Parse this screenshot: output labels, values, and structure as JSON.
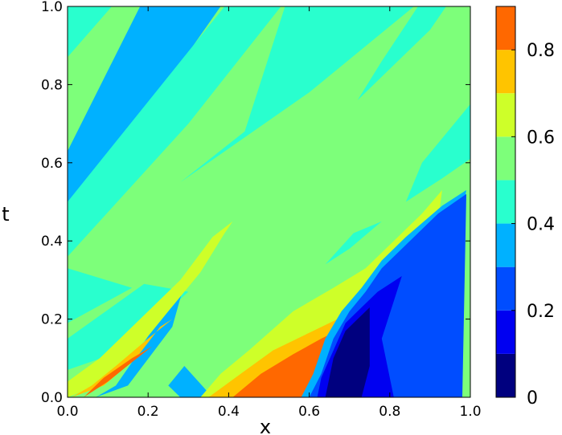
{
  "chart_data": {
    "type": "heatmap",
    "title": "",
    "xlabel": "x",
    "ylabel": "t",
    "xlim": [
      0.0,
      1.0
    ],
    "ylim": [
      0.0,
      1.0
    ],
    "x_ticks": [
      "0.0",
      "0.2",
      "0.4",
      "0.6",
      "0.8",
      "1.0"
    ],
    "y_ticks": [
      "0.0",
      "0.2",
      "0.4",
      "0.6",
      "0.8",
      "1.0"
    ],
    "x_tick_values": [
      0.0,
      0.2,
      0.4,
      0.6,
      0.8,
      1.0
    ],
    "y_tick_values": [
      0.0,
      0.2,
      0.4,
      0.6,
      0.8,
      1.0
    ],
    "colorbar": {
      "range": [
        0.0,
        0.9
      ],
      "levels": [
        0.0,
        0.1,
        0.2,
        0.3,
        0.4,
        0.5,
        0.6,
        0.7,
        0.8,
        0.9
      ],
      "colors": [
        "#00007f",
        "#0000f1",
        "#004dff",
        "#00b1ff",
        "#29ffce",
        "#7dff7a",
        "#ceff29",
        "#ffc400",
        "#ff6800",
        "#f10800"
      ],
      "tick_labels": [
        "0",
        "0.2",
        "0.4",
        "0.6",
        "0.8"
      ],
      "tick_values": [
        0.0,
        0.2,
        0.4,
        0.6,
        0.8
      ]
    },
    "field_background_level": 0.55,
    "regions": [
      {
        "level": 0.35,
        "points": [
          [
            0.18,
            1.0
          ],
          [
            0.38,
            1.0
          ],
          [
            0.19,
            0.72
          ],
          [
            0.0,
            0.46
          ],
          [
            0.0,
            0.63
          ]
        ]
      },
      {
        "level": 0.45,
        "points": [
          [
            0.0,
            1.0
          ],
          [
            0.11,
            1.0
          ],
          [
            0.0,
            0.87
          ]
        ]
      },
      {
        "level": 0.45,
        "points": [
          [
            0.39,
            1.0
          ],
          [
            0.53,
            1.0
          ],
          [
            0.3,
            0.7
          ],
          [
            0.0,
            0.36
          ],
          [
            0.0,
            0.5
          ]
        ]
      },
      {
        "level": 0.45,
        "points": [
          [
            0.54,
            1.0
          ],
          [
            0.86,
            1.0
          ],
          [
            0.6,
            0.78
          ],
          [
            0.28,
            0.55
          ],
          [
            0.44,
            0.68
          ]
        ]
      },
      {
        "level": 0.45,
        "points": [
          [
            0.87,
            1.0
          ],
          [
            0.94,
            1.0
          ],
          [
            0.9,
            0.94
          ],
          [
            0.72,
            0.76
          ],
          [
            0.78,
            0.86
          ]
        ]
      },
      {
        "level": 0.45,
        "points": [
          [
            0.0,
            0.33
          ],
          [
            0.16,
            0.28
          ],
          [
            0.0,
            0.19
          ]
        ]
      },
      {
        "level": 0.45,
        "points": [
          [
            1.0,
            0.75
          ],
          [
            1.0,
            0.61
          ],
          [
            0.93,
            0.56
          ],
          [
            0.84,
            0.5
          ],
          [
            0.88,
            0.6
          ]
        ]
      },
      {
        "level": 0.45,
        "points": [
          [
            0.78,
            0.45
          ],
          [
            0.7,
            0.38
          ],
          [
            0.64,
            0.34
          ],
          [
            0.71,
            0.42
          ]
        ]
      },
      {
        "level": 0.45,
        "points": [
          [
            0.0,
            0.07
          ],
          [
            0.14,
            0.12
          ],
          [
            0.3,
            0.27
          ],
          [
            0.19,
            0.29
          ],
          [
            0.0,
            0.15
          ]
        ]
      },
      {
        "level": 0.35,
        "points": [
          [
            0.07,
            0.0
          ],
          [
            0.15,
            0.03
          ],
          [
            0.26,
            0.18
          ],
          [
            0.29,
            0.29
          ],
          [
            0.22,
            0.19
          ],
          [
            0.16,
            0.09
          ],
          [
            0.12,
            0.03
          ]
        ]
      },
      {
        "level": 0.35,
        "points": [
          [
            0.28,
            0.0
          ],
          [
            0.36,
            0.0
          ],
          [
            0.29,
            0.08
          ],
          [
            0.25,
            0.03
          ]
        ]
      },
      {
        "level": 0.65,
        "points": [
          [
            0.0,
            0.0
          ],
          [
            0.05,
            0.02
          ],
          [
            0.14,
            0.08
          ],
          [
            0.25,
            0.22
          ],
          [
            0.33,
            0.32
          ],
          [
            0.39,
            0.42
          ],
          [
            0.41,
            0.45
          ],
          [
            0.36,
            0.41
          ],
          [
            0.28,
            0.3
          ],
          [
            0.18,
            0.2
          ],
          [
            0.08,
            0.1
          ],
          [
            0.0,
            0.04
          ]
        ]
      },
      {
        "level": 0.75,
        "points": [
          [
            0.01,
            0.0
          ],
          [
            0.09,
            0.03
          ],
          [
            0.17,
            0.1
          ],
          [
            0.23,
            0.18
          ],
          [
            0.26,
            0.2
          ],
          [
            0.2,
            0.15
          ],
          [
            0.12,
            0.08
          ],
          [
            0.06,
            0.03
          ]
        ]
      },
      {
        "level": 0.85,
        "points": [
          [
            0.04,
            0.0
          ],
          [
            0.1,
            0.04
          ],
          [
            0.16,
            0.09
          ],
          [
            0.21,
            0.13
          ],
          [
            0.16,
            0.1
          ],
          [
            0.09,
            0.05
          ]
        ]
      },
      {
        "level": 0.65,
        "points": [
          [
            0.33,
            0.0
          ],
          [
            0.62,
            0.0
          ],
          [
            0.66,
            0.08
          ],
          [
            0.67,
            0.16
          ],
          [
            0.73,
            0.24
          ],
          [
            0.8,
            0.31
          ],
          [
            0.86,
            0.38
          ],
          [
            0.92,
            0.45
          ],
          [
            0.93,
            0.53
          ],
          [
            0.88,
            0.47
          ],
          [
            0.81,
            0.4
          ],
          [
            0.74,
            0.33
          ],
          [
            0.66,
            0.28
          ],
          [
            0.56,
            0.22
          ],
          [
            0.45,
            0.12
          ],
          [
            0.38,
            0.06
          ]
        ]
      },
      {
        "level": 0.75,
        "points": [
          [
            0.35,
            0.0
          ],
          [
            0.6,
            0.0
          ],
          [
            0.63,
            0.06
          ],
          [
            0.66,
            0.15
          ],
          [
            0.69,
            0.21
          ],
          [
            0.65,
            0.19
          ],
          [
            0.59,
            0.16
          ],
          [
            0.51,
            0.12
          ],
          [
            0.43,
            0.06
          ]
        ]
      },
      {
        "level": 0.85,
        "points": [
          [
            0.41,
            0.0
          ],
          [
            0.58,
            0.0
          ],
          [
            0.62,
            0.06
          ],
          [
            0.67,
            0.17
          ],
          [
            0.63,
            0.15
          ],
          [
            0.56,
            0.11
          ],
          [
            0.48,
            0.06
          ]
        ]
      },
      {
        "level": 0.35,
        "points": [
          [
            0.58,
            0.0
          ],
          [
            0.9,
            0.0
          ],
          [
            0.99,
            0.53
          ],
          [
            0.93,
            0.49
          ],
          [
            0.84,
            0.41
          ],
          [
            0.78,
            0.35
          ],
          [
            0.73,
            0.28
          ],
          [
            0.68,
            0.22
          ],
          [
            0.64,
            0.15
          ],
          [
            0.61,
            0.06
          ]
        ]
      },
      {
        "level": 0.25,
        "points": [
          [
            0.6,
            0.0
          ],
          [
            0.98,
            0.0
          ],
          [
            0.99,
            0.52
          ],
          [
            0.92,
            0.47
          ],
          [
            0.84,
            0.39
          ],
          [
            0.78,
            0.33
          ],
          [
            0.74,
            0.27
          ],
          [
            0.7,
            0.22
          ],
          [
            0.66,
            0.15
          ],
          [
            0.63,
            0.06
          ]
        ]
      },
      {
        "level": 0.15,
        "points": [
          [
            0.62,
            0.0
          ],
          [
            0.81,
            0.0
          ],
          [
            0.78,
            0.15
          ],
          [
            0.83,
            0.31
          ],
          [
            0.77,
            0.27
          ],
          [
            0.72,
            0.22
          ],
          [
            0.69,
            0.19
          ],
          [
            0.66,
            0.12
          ],
          [
            0.63,
            0.05
          ]
        ]
      },
      {
        "level": 0.05,
        "points": [
          [
            0.64,
            0.0
          ],
          [
            0.73,
            0.0
          ],
          [
            0.75,
            0.08
          ],
          [
            0.75,
            0.23
          ],
          [
            0.72,
            0.2
          ],
          [
            0.69,
            0.17
          ],
          [
            0.66,
            0.1
          ]
        ]
      }
    ]
  }
}
